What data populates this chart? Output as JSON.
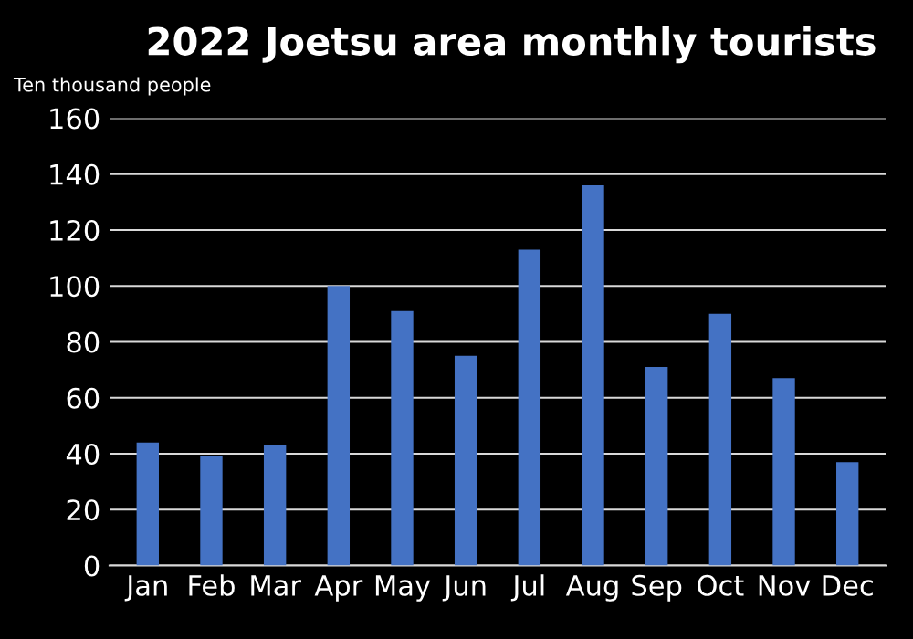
{
  "chart_data": {
    "type": "bar",
    "title": "2022 Joetsu area monthly tourists",
    "ylabel": "Ten thousand people",
    "categories": [
      "Jan",
      "Feb",
      "Mar",
      "Apr",
      "May",
      "Jun",
      "Jul",
      "Aug",
      "Sep",
      "Oct",
      "Nov",
      "Dec"
    ],
    "values": [
      44,
      39,
      43,
      100,
      91,
      75,
      113,
      136,
      71,
      90,
      67,
      37
    ],
    "color": "#4472c4",
    "ylim": [
      0,
      160
    ],
    "yticks": [
      0,
      20,
      40,
      60,
      80,
      100,
      120,
      140,
      160
    ],
    "grid": "y"
  }
}
